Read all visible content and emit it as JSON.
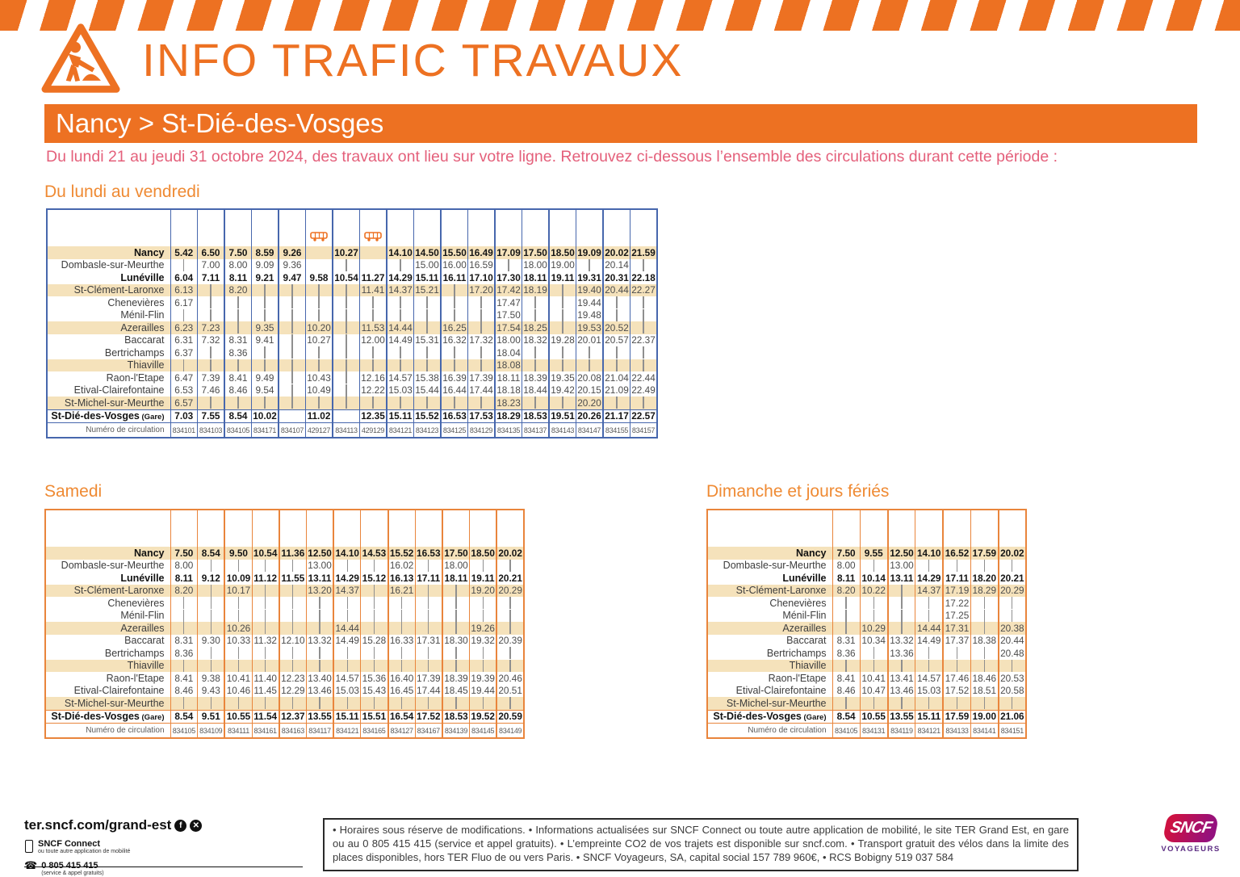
{
  "header": {
    "title": "INFO TRAFIC TRAVAUX",
    "route": "Nancy > St-Dié-des-Vosges",
    "subtitle": "Du lundi 21 au jeudi 31 octobre 2024, des travaux ont lieu sur votre ligne. Retrouvez ci-dessous l’ensemble des circulations durant cette période :"
  },
  "sections": {
    "weekday": "Du lundi au vendredi",
    "saturday": "Samedi",
    "sunday": "Dimanche et jours fériés"
  },
  "table_labels": {
    "circulation": "Numéro de circulation"
  },
  "stations": [
    {
      "name": "Nancy"
    },
    {
      "name": "Dombasle-sur-Meurthe"
    },
    {
      "name": "Lunéville"
    },
    {
      "name": "St-Clément-Laronxe"
    },
    {
      "name": "Chenevières"
    },
    {
      "name": "Ménil-Flin"
    },
    {
      "name": "Azerailles"
    },
    {
      "name": "Baccarat"
    },
    {
      "name": "Bertrichamps"
    },
    {
      "name": "Thiaville"
    },
    {
      "name": "Raon-l'Etape"
    },
    {
      "name": "Etival-Clairefontaine"
    },
    {
      "name": "St-Michel-sur-Meurthe"
    },
    {
      "name": "St-Dié-des-Vosges",
      "suffix": "(Gare)"
    }
  ],
  "tables": {
    "weekday": {
      "trains": [
        {
          "num": "834101",
          "bus": false,
          "times": [
            "5.42",
            "|",
            "6.04",
            "6.13",
            "6.17",
            "|",
            "6.23",
            "6.31",
            "6.37",
            "|",
            "6.47",
            "6.53",
            "6.57",
            "7.03"
          ]
        },
        {
          "num": "834103",
          "bus": false,
          "times": [
            "6.50",
            "7.00",
            "7.11",
            "|",
            "|",
            "|",
            "7.23",
            "7.32",
            "|",
            "|",
            "7.39",
            "7.46",
            "|",
            "7.55"
          ]
        },
        {
          "num": "834105",
          "bus": false,
          "times": [
            "7.50",
            "8.00",
            "8.11",
            "8.20",
            "|",
            "|",
            "|",
            "8.31",
            "8.36",
            "|",
            "8.41",
            "8.46",
            "|",
            "8.54"
          ]
        },
        {
          "num": "834171",
          "bus": false,
          "times": [
            "8.59",
            "9.09",
            "9.21",
            "|",
            "|",
            "|",
            "9.35",
            "9.41",
            "|",
            "|",
            "9.49",
            "9.54",
            "|",
            "10.02"
          ]
        },
        {
          "num": "834107",
          "bus": false,
          "times": [
            "9.26",
            "9.36",
            "9.47",
            "|",
            "|",
            "|",
            "|",
            "|",
            "|",
            "|",
            "|",
            "|",
            "|",
            ""
          ]
        },
        {
          "num": "429127",
          "bus": true,
          "times": [
            "",
            "",
            "9.58",
            "|",
            "|",
            "|",
            "10.20",
            "10.27",
            "|",
            "|",
            "10.43",
            "10.49",
            "|",
            "11.02"
          ]
        },
        {
          "num": "834113",
          "bus": false,
          "times": [
            "10.27",
            "|",
            "10.54",
            "|",
            "|",
            "|",
            "|",
            "|",
            "|",
            "|",
            "|",
            "|",
            "|",
            ""
          ]
        },
        {
          "num": "429129",
          "bus": true,
          "times": [
            "",
            "",
            "11.27",
            "11.41",
            "|",
            "|",
            "11.53",
            "12.00",
            "|",
            "|",
            "12.16",
            "12.22",
            "|",
            "12.35"
          ]
        },
        {
          "num": "834121",
          "bus": false,
          "times": [
            "14.10",
            "|",
            "14.29",
            "14.37",
            "|",
            "|",
            "14.44",
            "14.49",
            "|",
            "|",
            "14.57",
            "15.03",
            "|",
            "15.11"
          ]
        },
        {
          "num": "834123",
          "bus": false,
          "times": [
            "14.50",
            "15.00",
            "15.11",
            "15.21",
            "|",
            "|",
            "|",
            "15.31",
            "|",
            "|",
            "15.38",
            "15.44",
            "|",
            "15.52"
          ]
        },
        {
          "num": "834125",
          "bus": false,
          "times": [
            "15.50",
            "16.00",
            "16.11",
            "|",
            "|",
            "|",
            "16.25",
            "16.32",
            "|",
            "|",
            "16.39",
            "16.44",
            "|",
            "16.53"
          ]
        },
        {
          "num": "834129",
          "bus": false,
          "times": [
            "16.49",
            "16.59",
            "17.10",
            "17.20",
            "|",
            "|",
            "|",
            "17.32",
            "|",
            "|",
            "17.39",
            "17.44",
            "|",
            "17.53"
          ]
        },
        {
          "num": "834135",
          "bus": false,
          "times": [
            "17.09",
            "|",
            "17.30",
            "17.42",
            "17.47",
            "17.50",
            "17.54",
            "18.00",
            "18.04",
            "18.08",
            "18.11",
            "18.18",
            "18.23",
            "18.29"
          ]
        },
        {
          "num": "834137",
          "bus": false,
          "times": [
            "17.50",
            "18.00",
            "18.11",
            "18.19",
            "|",
            "|",
            "18.25",
            "18.32",
            "|",
            "|",
            "18.39",
            "18.44",
            "|",
            "18.53"
          ]
        },
        {
          "num": "834143",
          "bus": false,
          "times": [
            "18.50",
            "19.00",
            "19.11",
            "|",
            "|",
            "|",
            "|",
            "19.28",
            "|",
            "|",
            "19.35",
            "19.42",
            "|",
            "19.51"
          ]
        },
        {
          "num": "834147",
          "bus": false,
          "times": [
            "19.09",
            "|",
            "19.31",
            "19.40",
            "19.44",
            "19.48",
            "19.53",
            "20.01",
            "|",
            "|",
            "20.08",
            "20.15",
            "20.20",
            "20.26"
          ]
        },
        {
          "num": "834155",
          "bus": false,
          "times": [
            "20.02",
            "20.14",
            "20.31",
            "20.44",
            "|",
            "|",
            "20.52",
            "20.57",
            "|",
            "|",
            "21.04",
            "21.09",
            "|",
            "21.17"
          ]
        },
        {
          "num": "834157",
          "bus": false,
          "times": [
            "21.59",
            "|",
            "22.18",
            "22.27",
            "|",
            "|",
            "|",
            "22.37",
            "|",
            "|",
            "22.44",
            "22.49",
            "|",
            "22.57"
          ]
        }
      ]
    },
    "saturday": {
      "trains": [
        {
          "num": "834105",
          "bus": false,
          "times": [
            "7.50",
            "8.00",
            "8.11",
            "8.20",
            "|",
            "|",
            "|",
            "8.31",
            "8.36",
            "|",
            "8.41",
            "8.46",
            "|",
            "8.54"
          ]
        },
        {
          "num": "834109",
          "bus": false,
          "times": [
            "8.54",
            "|",
            "9.12",
            "|",
            "|",
            "|",
            "|",
            "9.30",
            "|",
            "|",
            "9.38",
            "9.43",
            "|",
            "9.51"
          ]
        },
        {
          "num": "834111",
          "bus": false,
          "times": [
            "9.50",
            "|",
            "10.09",
            "10.17",
            "|",
            "|",
            "10.26",
            "10.33",
            "|",
            "|",
            "10.41",
            "10.46",
            "|",
            "10.55"
          ]
        },
        {
          "num": "834161",
          "bus": false,
          "times": [
            "10.54",
            "|",
            "11.12",
            "|",
            "|",
            "|",
            "|",
            "11.32",
            "|",
            "|",
            "11.40",
            "11.45",
            "|",
            "11.54"
          ]
        },
        {
          "num": "834163",
          "bus": false,
          "times": [
            "11.36",
            "|",
            "11.55",
            "|",
            "|",
            "|",
            "|",
            "12.10",
            "|",
            "|",
            "12.23",
            "12.29",
            "|",
            "12.37"
          ]
        },
        {
          "num": "834117",
          "bus": false,
          "times": [
            "12.50",
            "13.00",
            "13.11",
            "13.20",
            "|",
            "|",
            "|",
            "13.32",
            "|",
            "|",
            "13.40",
            "13.46",
            "|",
            "13.55"
          ]
        },
        {
          "num": "834121",
          "bus": false,
          "times": [
            "14.10",
            "|",
            "14.29",
            "14.37",
            "|",
            "|",
            "14.44",
            "14.49",
            "|",
            "|",
            "14.57",
            "15.03",
            "|",
            "15.11"
          ]
        },
        {
          "num": "834165",
          "bus": false,
          "times": [
            "14.53",
            "|",
            "15.12",
            "|",
            "|",
            "|",
            "|",
            "15.28",
            "|",
            "|",
            "15.36",
            "15.43",
            "|",
            "15.51"
          ]
        },
        {
          "num": "834127",
          "bus": false,
          "times": [
            "15.52",
            "16.02",
            "16.13",
            "16.21",
            "|",
            "|",
            "|",
            "16.33",
            "|",
            "|",
            "16.40",
            "16.45",
            "|",
            "16.54"
          ]
        },
        {
          "num": "834167",
          "bus": false,
          "times": [
            "16.53",
            "|",
            "17.11",
            "|",
            "|",
            "|",
            "|",
            "17.31",
            "|",
            "|",
            "17.39",
            "17.44",
            "|",
            "17.52"
          ]
        },
        {
          "num": "834139",
          "bus": false,
          "times": [
            "17.50",
            "18.00",
            "18.11",
            "|",
            "|",
            "|",
            "|",
            "18.30",
            "|",
            "|",
            "18.39",
            "18.45",
            "|",
            "18.53"
          ]
        },
        {
          "num": "834145",
          "bus": false,
          "times": [
            "18.50",
            "|",
            "19.11",
            "19.20",
            "|",
            "|",
            "19.26",
            "19.32",
            "|",
            "|",
            "19.39",
            "19.44",
            "|",
            "19.52"
          ]
        },
        {
          "num": "834149",
          "bus": false,
          "times": [
            "20.02",
            "|",
            "20.21",
            "20.29",
            "|",
            "|",
            "|",
            "20.39",
            "|",
            "|",
            "20.46",
            "20.51",
            "|",
            "20.59"
          ]
        }
      ]
    },
    "sunday": {
      "trains": [
        {
          "num": "834105",
          "bus": false,
          "times": [
            "7.50",
            "8.00",
            "8.11",
            "8.20",
            "|",
            "|",
            "|",
            "8.31",
            "8.36",
            "|",
            "8.41",
            "8.46",
            "|",
            "8.54"
          ]
        },
        {
          "num": "834131",
          "bus": false,
          "times": [
            "9.55",
            "|",
            "10.14",
            "10.22",
            "|",
            "|",
            "10.29",
            "10.34",
            "|",
            "|",
            "10.41",
            "10.47",
            "|",
            "10.55"
          ]
        },
        {
          "num": "834119",
          "bus": false,
          "times": [
            "12.50",
            "13.00",
            "13.11",
            "|",
            "|",
            "|",
            "|",
            "13.32",
            "13.36",
            "|",
            "13.41",
            "13.46",
            "|",
            "13.55"
          ]
        },
        {
          "num": "834121",
          "bus": false,
          "times": [
            "14.10",
            "|",
            "14.29",
            "14.37",
            "|",
            "|",
            "14.44",
            "14.49",
            "|",
            "|",
            "14.57",
            "15.03",
            "|",
            "15.11"
          ]
        },
        {
          "num": "834133",
          "bus": false,
          "times": [
            "16.52",
            "|",
            "17.11",
            "17.19",
            "17.22",
            "17.25",
            "17.31",
            "17.37",
            "|",
            "|",
            "17.46",
            "17.52",
            "|",
            "17.59"
          ]
        },
        {
          "num": "834141",
          "bus": false,
          "times": [
            "17.59",
            "|",
            "18.20",
            "18.29",
            "|",
            "|",
            "|",
            "18.38",
            "|",
            "|",
            "18.46",
            "18.51",
            "|",
            "19.00"
          ]
        },
        {
          "num": "834151",
          "bus": false,
          "times": [
            "20.02",
            "|",
            "20.21",
            "20.29",
            "|",
            "|",
            "20.38",
            "20.44",
            "20.48",
            "|",
            "20.53",
            "20.58",
            "|",
            "21.06"
          ]
        }
      ]
    }
  },
  "footer": {
    "site": "ter.sncf.com/grand-est",
    "connect": "SNCF Connect",
    "connect_sub": "ou toute autre application de mobilité",
    "tel": "0 805 415 415",
    "tel_sub": "(service & appel gratuits)",
    "legal": "• Horaires sous réserve de modifications.  • Informations actualisées sur SNCF Connect ou toute autre application de mobilité, le site TER Grand Est, en gare ou au 0 805 415 415 (service et appel gratuits).  • L’empreinte CO2 de vos trajets est disponible sur sncf.com.  • Transport gratuit des vélos dans la limite des places disponibles, hors TER Fluo de ou vers Paris.  • SNCF Voyageurs, SA, capital social 157 789 960€,  • RCS Bobigny 519 037 584"
  },
  "logo": {
    "sncf": "SNCF",
    "voyageurs": "VOYAGEURS"
  },
  "colors": {
    "orange": "#ED7122",
    "pink": "#E4607B",
    "blue_grid": "#4767AD",
    "orange_grid": "#E9853C",
    "tan_row": "#F5E2BB"
  }
}
